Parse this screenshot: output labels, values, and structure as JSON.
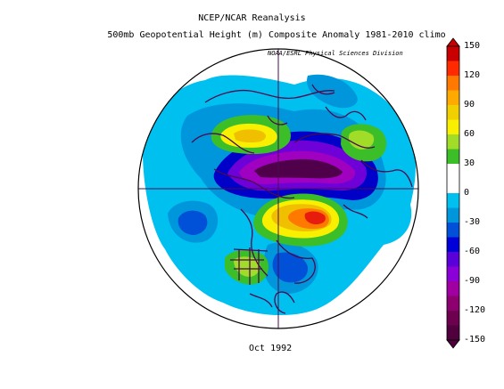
{
  "header": {
    "title_line1": "NCEP/NCAR Reanalysis",
    "title_line2": "500mb Geopotential Height (m) Composite Anomaly 1981-2010 climo",
    "credit": "NOAA/ESRL Physical Sciences Division"
  },
  "footer": {
    "date_label": "Oct 1992"
  },
  "colorbar": {
    "labels": [
      "150",
      "120",
      "90",
      "60",
      "30",
      "0",
      "-30",
      "-60",
      "-90",
      "-120",
      "-150"
    ],
    "colors_top_to_bottom": [
      "#c80000",
      "#ff2a00",
      "#ff7800",
      "#ffaa00",
      "#f0d000",
      "#f8f000",
      "#a0dc28",
      "#3cbe28",
      "#ffffff",
      "#ffffff",
      "#00c0f0",
      "#0096dc",
      "#0050d8",
      "#0000d8",
      "#5a00d8",
      "#8c00d8",
      "#a000a0",
      "#8c0070",
      "#6e0050",
      "#50003c"
    ]
  },
  "map": {
    "projection": "north-polar-stereographic",
    "line_color": "#4a0b4f",
    "field_colors": {
      "cyan": "#00c0f0",
      "blue": "#0096dc",
      "dark_blue": "#0050d8",
      "navy": "#0000c8",
      "violet": "#6e00d8",
      "purple": "#a000c0",
      "dark_purple": "#50004a",
      "yellow_green": "#a0dc28",
      "green": "#3cbe28",
      "yellow": "#f8f000",
      "gold": "#f0c000",
      "orange": "#ff7800",
      "red": "#e81c0c"
    }
  }
}
